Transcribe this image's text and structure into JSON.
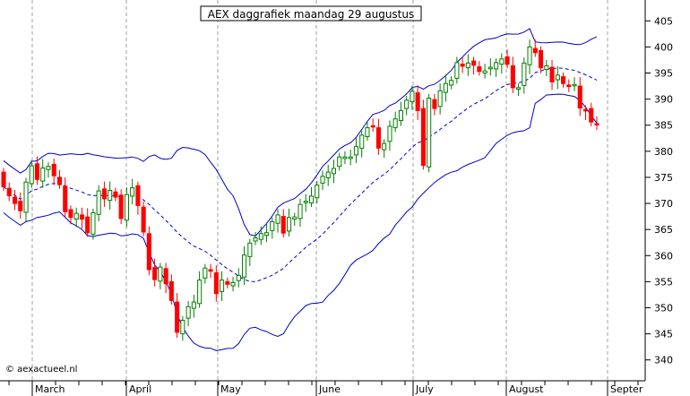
{
  "chart_data": {
    "type": "candlestick",
    "title": "AEX daggrafiek maandag 29 augustus",
    "copyright": "© aexactueel.nl",
    "y_axis": {
      "position": "right",
      "ticks": [
        340,
        345,
        350,
        355,
        360,
        365,
        370,
        375,
        380,
        385,
        390,
        395,
        400,
        405
      ],
      "ylim": [
        336,
        409
      ]
    },
    "x_axis": {
      "labels": [
        "March",
        "April",
        "May",
        "June",
        "July",
        "August",
        "Septer"
      ]
    },
    "grid": {
      "vertical_dashed": true,
      "horizontal": false
    },
    "colors": {
      "up_candle": "#008000",
      "down_candle": "#ff0000",
      "bollinger_band": "#0000cc",
      "moving_average": "#0000cc",
      "grid": "#a0a0a0"
    },
    "indicators": [
      "Bollinger bands (upper, lower)",
      "moving average (dashed)"
    ],
    "approx_close_series": [
      373.2,
      371.5,
      370,
      368.6,
      374.1,
      377.2,
      374.6,
      376.8,
      377.1,
      375.3,
      373.6,
      368.4,
      367.3,
      368.1,
      367,
      364.4,
      368.2,
      372.4,
      370.9,
      372.5,
      371.2,
      367.1,
      371.7,
      373,
      369.6,
      364.5,
      357.3,
      355.4,
      357.8,
      354.6,
      351.4,
      345.3,
      347.6,
      350.2,
      351.1,
      355.3,
      357.6,
      357,
      352.7,
      355.3,
      354.5,
      354.8,
      356.2,
      360.1,
      362.4,
      363.4,
      364.2,
      364.4,
      366.5,
      367.8,
      364.3,
      367.3,
      367.4,
      369.8,
      370.4,
      371.4,
      373.5,
      375.2,
      376,
      376.7,
      378.9,
      378.9,
      378.9,
      380.9,
      383.1,
      384.5,
      384.8,
      380.6,
      381.5,
      384.8,
      386.2,
      387.8,
      389.8,
      391.5,
      387.8,
      377.3,
      390.2,
      388.2,
      391.6,
      393,
      393.6,
      397,
      396.3,
      396.9,
      396.5,
      395.3,
      395.4,
      396.1,
      397,
      397.7,
      396.7,
      392.2,
      392.2,
      396.9,
      400,
      398.9,
      396,
      396.4,
      393.3,
      394.6,
      393,
      392.4,
      392.8,
      388.3,
      387.8,
      385.6,
      385.1
    ]
  }
}
